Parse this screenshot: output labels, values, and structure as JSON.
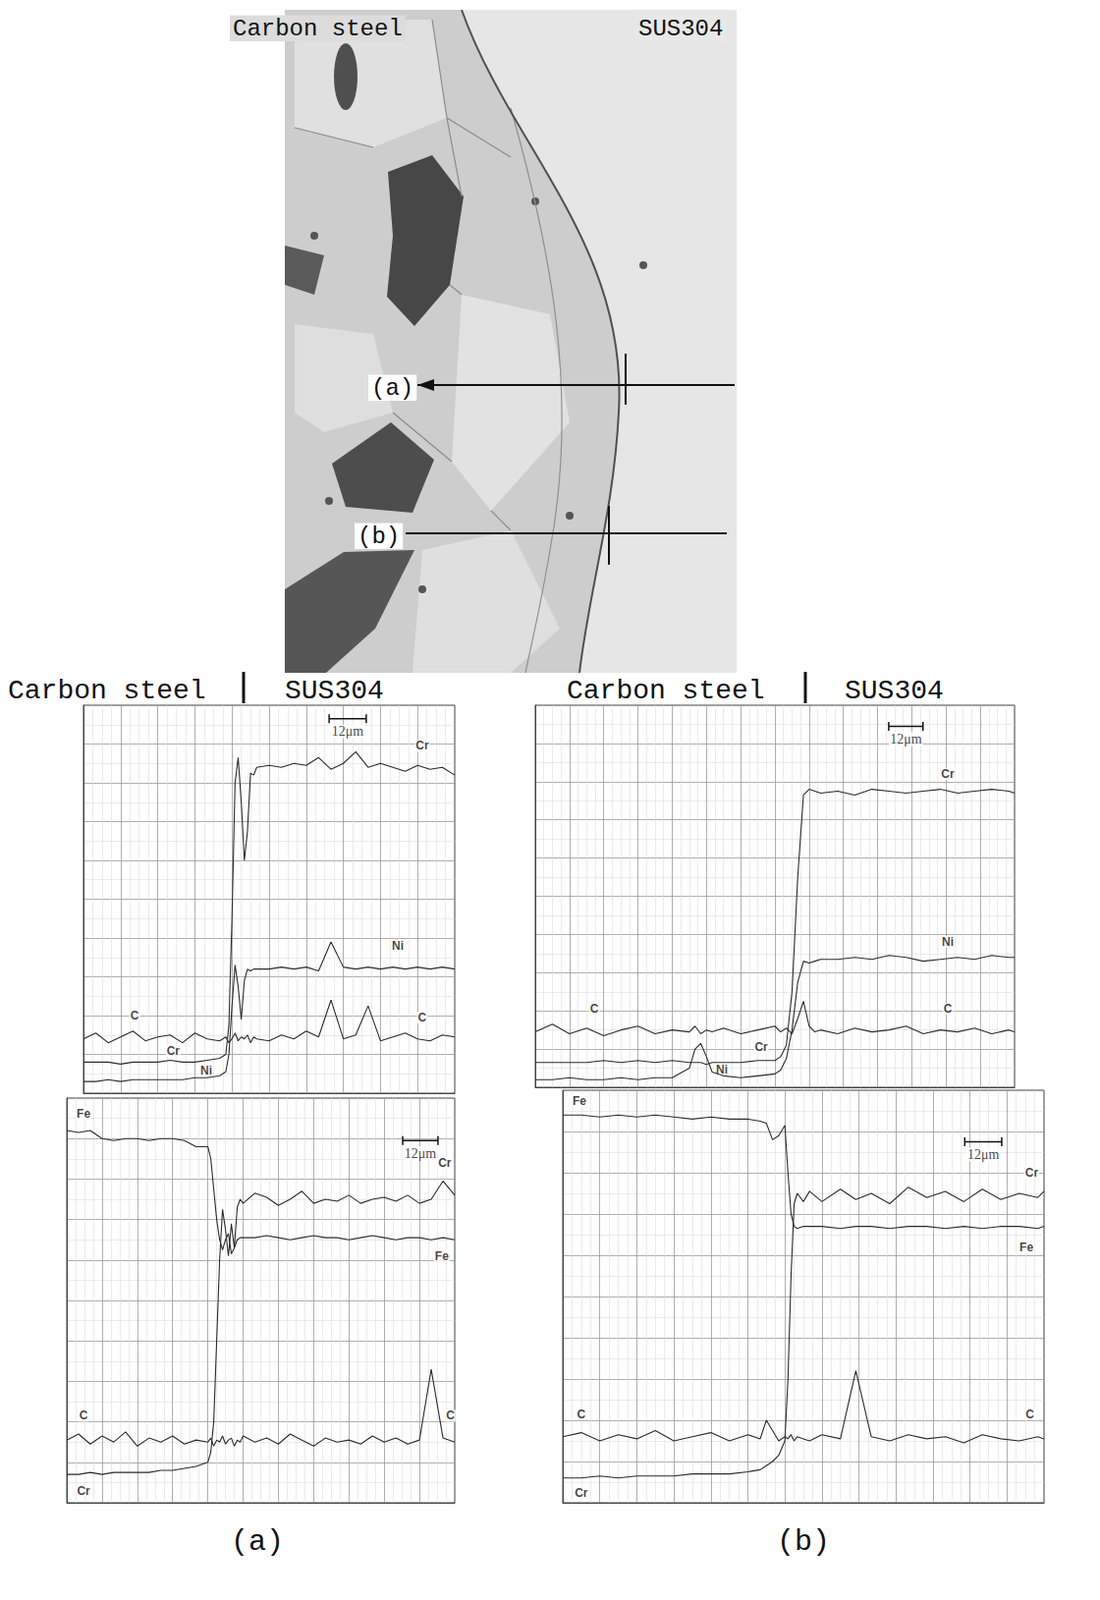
{
  "micrograph": {
    "labels": [
      "Carbon steel",
      "SUS304"
    ],
    "scan_lines": [
      "(a)",
      "(b)"
    ]
  },
  "columns": [
    {
      "labels": [
        "Carbon steel",
        "SUS304"
      ],
      "caption": "(a)"
    },
    {
      "labels": [
        "Carbon steel",
        "SUS304"
      ],
      "caption": "(b)"
    }
  ],
  "chart_data": [
    {
      "type": "line",
      "x": [
        0,
        4,
        8,
        12,
        16,
        20,
        24,
        28,
        32,
        36,
        40,
        44,
        46,
        47,
        48,
        49,
        50,
        51,
        52,
        53,
        54,
        55,
        56,
        60,
        64,
        68,
        72,
        76,
        80,
        84,
        88,
        92,
        96,
        100,
        104,
        108,
        112,
        116,
        120
      ],
      "xlim": [
        0,
        120
      ],
      "xticks": [
        0,
        12,
        24,
        36,
        48,
        60,
        72,
        84,
        96,
        108,
        120
      ],
      "ylim": [
        0,
        20
      ],
      "yticks": [
        0,
        2,
        4,
        6,
        8,
        10,
        12,
        14,
        16,
        18,
        20
      ],
      "grid": true,
      "tick_labels": false,
      "series": [
        {
          "name": "Cr",
          "color": "#2b2b2b",
          "values": [
            1.6,
            1.6,
            1.6,
            1.5,
            1.6,
            1.6,
            1.6,
            1.7,
            1.6,
            1.6,
            1.7,
            1.8,
            2.0,
            3.5,
            9,
            16,
            17.3,
            15,
            12,
            13.5,
            16.5,
            16.4,
            16.8,
            16.9,
            16.8,
            17.0,
            16.9,
            17.3,
            16.7,
            17.0,
            17.6,
            16.8,
            17.0,
            16.8,
            16.6,
            16.9,
            16.7,
            16.8,
            16.4
          ]
        },
        {
          "name": "Ni",
          "color": "#2b2b2b",
          "values": [
            0.6,
            0.6,
            0.7,
            0.6,
            0.7,
            0.7,
            0.7,
            0.7,
            0.7,
            0.8,
            0.8,
            0.9,
            1.1,
            2.0,
            4.5,
            6.6,
            5.5,
            3.8,
            5.8,
            6.4,
            6.3,
            6.4,
            6.4,
            6.4,
            6.5,
            6.4,
            6.5,
            6.3,
            7.8,
            6.5,
            6.4,
            6.5,
            6.4,
            6.5,
            6.4,
            6.5,
            6.4,
            6.5,
            6.4
          ]
        },
        {
          "name": "C",
          "color": "#2b2b2b",
          "values": [
            2.8,
            3.1,
            2.6,
            2.9,
            3.2,
            2.7,
            2.9,
            3.0,
            2.6,
            3.1,
            2.8,
            2.7,
            2.9,
            2.6,
            2.8,
            3.1,
            2.7,
            2.9,
            2.8,
            3.0,
            2.6,
            2.9,
            2.8,
            2.7,
            3.0,
            2.8,
            3.2,
            2.9,
            4.8,
            2.8,
            3.0,
            4.5,
            2.7,
            2.9,
            3.1,
            2.8,
            2.7,
            3.0,
            2.9
          ]
        }
      ],
      "annotations": [
        {
          "text": "Cr",
          "x": 109.5,
          "y": 17.9
        },
        {
          "text": "Ni",
          "x": 101.6,
          "y": 7.6
        },
        {
          "text": "C",
          "x": 16.5,
          "y": 4.0
        },
        {
          "text": "C",
          "x": 109.5,
          "y": 3.9
        },
        {
          "text": "Cr",
          "x": 29,
          "y": 2.2
        },
        {
          "text": "Ni",
          "x": 39.7,
          "y": 1.15
        }
      ],
      "scale_bar": {
        "value": 12,
        "label": "12μm",
        "x": 79.4,
        "y": 19.3
      }
    },
    {
      "type": "line",
      "x": [
        0,
        4,
        8,
        12,
        16,
        20,
        24,
        28,
        32,
        36,
        40,
        44,
        48,
        49,
        50,
        51,
        52,
        53,
        54,
        55,
        56,
        57,
        58,
        59,
        60,
        64,
        68,
        72,
        76,
        80,
        84,
        88,
        92,
        96,
        100,
        104,
        108,
        112,
        116,
        120,
        124,
        128,
        132
      ],
      "xlim": [
        0,
        132
      ],
      "xticks": [
        0,
        12,
        24,
        36,
        48,
        60,
        72,
        84,
        96,
        108,
        120,
        132
      ],
      "ylim": [
        0,
        20
      ],
      "yticks": [
        0,
        2,
        4,
        6,
        8,
        10,
        12,
        14,
        16,
        18,
        20
      ],
      "grid": true,
      "tick_labels": false,
      "series": [
        {
          "name": "Fe",
          "color": "#2b2b2b",
          "values": [
            18.4,
            18.3,
            18.4,
            18.0,
            17.9,
            18.0,
            18.0,
            17.9,
            18.0,
            18.0,
            17.9,
            17.6,
            17.6,
            17.0,
            15.5,
            14.0,
            13.0,
            12.5,
            13.0,
            13.3,
            12.3,
            12.6,
            13.0,
            13.1,
            13.1,
            13.1,
            13.2,
            13.1,
            13.0,
            13.1,
            13.2,
            13.1,
            13.1,
            13.0,
            13.1,
            13.2,
            13.1,
            13.0,
            13.1,
            13.1,
            13.0,
            13.1,
            13.0
          ]
        },
        {
          "name": "Cr",
          "color": "#2b2b2b",
          "values": [
            1.4,
            1.4,
            1.5,
            1.4,
            1.5,
            1.5,
            1.5,
            1.5,
            1.6,
            1.6,
            1.7,
            1.8,
            2.0,
            2.5,
            4,
            8,
            12,
            14.5,
            13.5,
            12.2,
            13.8,
            12.6,
            14.6,
            15.0,
            14.8,
            15.3,
            15.1,
            14.7,
            15.0,
            15.4,
            14.8,
            15.0,
            14.9,
            15.2,
            14.8,
            15.0,
            15.1,
            14.9,
            15.2,
            14.8,
            15.0,
            15.9,
            15.2
          ]
        },
        {
          "name": "C",
          "color": "#2b2b2b",
          "values": [
            3.1,
            3.4,
            2.9,
            3.3,
            3.0,
            3.5,
            2.8,
            3.2,
            3.0,
            3.3,
            2.9,
            3.1,
            3.0,
            3.2,
            2.8,
            3.1,
            3.0,
            3.3,
            2.9,
            3.1,
            3.2,
            2.8,
            3.1,
            3.0,
            3.3,
            3.0,
            3.2,
            2.9,
            3.4,
            3.1,
            2.8,
            3.2,
            3.0,
            3.1,
            2.9,
            3.3,
            3.0,
            3.2,
            2.9,
            3.1,
            6.6,
            3.2,
            3.0
          ]
        }
      ],
      "annotations": [
        {
          "text": "Fe",
          "x": 5.7,
          "y": 19.2
        },
        {
          "text": "Cr",
          "x": 128.6,
          "y": 16.8
        },
        {
          "text": "Fe",
          "x": 127.6,
          "y": 12.2
        },
        {
          "text": "C",
          "x": 5.7,
          "y": 4.3
        },
        {
          "text": "C",
          "x": 130.5,
          "y": 4.3
        },
        {
          "text": "Cr",
          "x": 5.7,
          "y": 0.6
        }
      ],
      "scale_bar": {
        "value": 12,
        "label": "12μm",
        "x": 114.3,
        "y": 17.9
      }
    },
    {
      "type": "line",
      "x": [
        0,
        6,
        12,
        18,
        24,
        30,
        36,
        42,
        48,
        54,
        56,
        58,
        60,
        62,
        66,
        72,
        78,
        84,
        86,
        88,
        90,
        92,
        94,
        96,
        98,
        100,
        106,
        112,
        118,
        124,
        130,
        136,
        142,
        148,
        154,
        160,
        166,
        168
      ],
      "xlim": [
        0,
        168
      ],
      "xticks": [
        0,
        12,
        24,
        36,
        48,
        60,
        72,
        84,
        96,
        108,
        120,
        132,
        144,
        156,
        168
      ],
      "ylim": [
        0,
        20
      ],
      "yticks": [
        0,
        2,
        4,
        6,
        8,
        10,
        12,
        14,
        16,
        18,
        20
      ],
      "grid": true,
      "tick_labels": false,
      "series": [
        {
          "name": "Cr",
          "color": "#2b2b2b",
          "values": [
            1.3,
            1.3,
            1.3,
            1.3,
            1.4,
            1.3,
            1.4,
            1.3,
            1.4,
            1.3,
            1.3,
            1.3,
            1.2,
            1.3,
            1.3,
            1.3,
            1.4,
            1.4,
            1.6,
            2.2,
            5,
            11,
            15.3,
            15.6,
            15.5,
            15.4,
            15.5,
            15.3,
            15.6,
            15.5,
            15.4,
            15.5,
            15.6,
            15.4,
            15.5,
            15.6,
            15.5,
            15.4
          ]
        },
        {
          "name": "Ni",
          "color": "#2b2b2b",
          "values": [
            0.4,
            0.4,
            0.5,
            0.4,
            0.4,
            0.5,
            0.4,
            0.5,
            0.5,
            1.0,
            2.0,
            2.3,
            1.6,
            0.8,
            0.6,
            0.5,
            0.6,
            0.7,
            0.9,
            1.5,
            3,
            5.5,
            6.6,
            6.5,
            6.6,
            6.7,
            6.7,
            6.8,
            6.7,
            6.9,
            6.8,
            6.6,
            6.7,
            6.8,
            6.7,
            6.9,
            6.8,
            6.8
          ]
        },
        {
          "name": "C",
          "color": "#2b2b2b",
          "values": [
            2.9,
            3.3,
            2.8,
            3.1,
            2.7,
            3.0,
            3.2,
            2.8,
            3.0,
            2.9,
            3.2,
            2.8,
            3.0,
            2.9,
            3.1,
            2.8,
            3.0,
            3.2,
            2.9,
            3.1,
            2.8,
            3.6,
            4.5,
            3.2,
            2.9,
            3.0,
            2.8,
            3.1,
            2.9,
            3.0,
            3.2,
            2.8,
            3.0,
            2.9,
            3.1,
            2.8,
            3.0,
            2.9
          ]
        }
      ],
      "annotations": [
        {
          "text": "Cr",
          "x": 144.6,
          "y": 16.4
        },
        {
          "text": "Ni",
          "x": 144.6,
          "y": 7.6
        },
        {
          "text": "C",
          "x": 20.7,
          "y": 4.1
        },
        {
          "text": "C",
          "x": 144.6,
          "y": 4.1
        },
        {
          "text": "Cr",
          "x": 79.2,
          "y": 2.1
        },
        {
          "text": "Ni",
          "x": 65.4,
          "y": 0.95
        }
      ],
      "scale_bar": {
        "value": 12,
        "label": "12μm",
        "x": 123.9,
        "y": 18.9
      }
    },
    {
      "type": "line",
      "x": [
        0,
        6,
        12,
        18,
        24,
        30,
        36,
        42,
        48,
        54,
        60,
        64,
        66,
        68,
        70,
        72,
        73,
        74,
        75,
        76,
        78,
        80,
        84,
        90,
        95,
        100,
        106,
        112,
        118,
        124,
        130,
        136,
        142,
        148,
        154,
        156
      ],
      "xlim": [
        0,
        156
      ],
      "xticks": [
        0,
        12,
        24,
        36,
        48,
        60,
        72,
        84,
        96,
        108,
        120,
        132,
        144,
        156
      ],
      "ylim": [
        0,
        20
      ],
      "yticks": [
        0,
        2,
        4,
        6,
        8,
        10,
        12,
        14,
        16,
        18,
        20
      ],
      "grid": true,
      "tick_labels": false,
      "series": [
        {
          "name": "Fe",
          "color": "#2b2b2b",
          "values": [
            18.8,
            18.8,
            18.7,
            18.8,
            18.7,
            18.8,
            18.7,
            18.6,
            18.7,
            18.6,
            18.6,
            18.5,
            18.4,
            17.6,
            17.8,
            18.3,
            16,
            14,
            13.4,
            13.3,
            13.4,
            13.4,
            13.4,
            13.3,
            13.4,
            13.4,
            13.3,
            13.4,
            13.4,
            13.3,
            13.4,
            13.3,
            13.4,
            13.4,
            13.3,
            13.4
          ]
        },
        {
          "name": "Cr",
          "color": "#2b2b2b",
          "values": [
            1.2,
            1.2,
            1.3,
            1.2,
            1.3,
            1.3,
            1.3,
            1.4,
            1.4,
            1.4,
            1.5,
            1.6,
            1.8,
            2.0,
            2.3,
            3.0,
            6,
            11,
            14.5,
            15.0,
            14.6,
            15.1,
            14.6,
            15.2,
            14.7,
            15.0,
            14.5,
            15.3,
            14.8,
            15.1,
            14.6,
            15.2,
            14.7,
            15.0,
            14.8,
            15.1
          ]
        },
        {
          "name": "C",
          "color": "#2b2b2b",
          "values": [
            3.2,
            3.4,
            3.0,
            3.3,
            3.1,
            3.5,
            3.0,
            3.2,
            3.4,
            3.0,
            3.3,
            3.1,
            4.0,
            3.5,
            3.0,
            3.2,
            3.1,
            3.3,
            3.0,
            3.2,
            3.1,
            3.0,
            3.3,
            3.1,
            6.4,
            3.2,
            3.0,
            3.3,
            3.1,
            3.2,
            2.9,
            3.3,
            3.1,
            3.0,
            3.2,
            3.1
          ]
        }
      ],
      "annotations": [
        {
          "text": "Fe",
          "x": 5.4,
          "y": 19.5
        },
        {
          "text": "Cr",
          "x": 152,
          "y": 16.0
        },
        {
          "text": "Fe",
          "x": 150.3,
          "y": 12.4
        },
        {
          "text": "C",
          "x": 6,
          "y": 4.3
        },
        {
          "text": "C",
          "x": 151.4,
          "y": 4.3
        },
        {
          "text": "Cr",
          "x": 6,
          "y": 0.5
        }
      ],
      "scale_bar": {
        "value": 12,
        "label": "12μm",
        "x": 130.3,
        "y": 17.5
      }
    }
  ]
}
